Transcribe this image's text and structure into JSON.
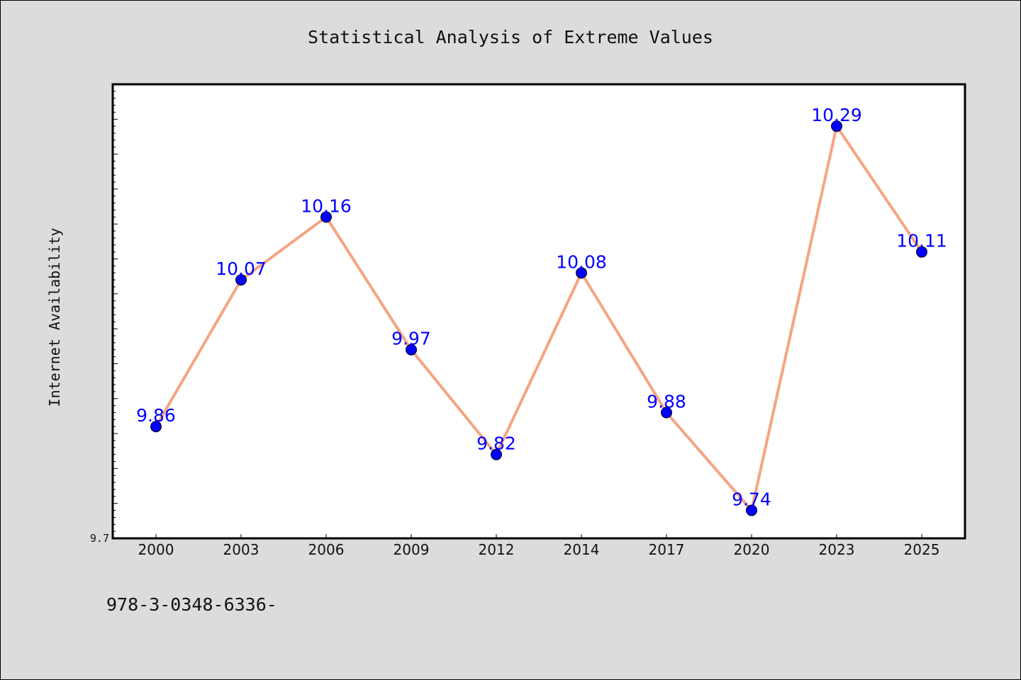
{
  "chart_data": {
    "type": "line",
    "title": "Statistical Analysis of Extreme Values",
    "xlabel": "",
    "ylabel": "Internet Availability",
    "categories": [
      "2000",
      "2003",
      "2006",
      "2009",
      "2012",
      "2014",
      "2017",
      "2020",
      "2023",
      "2025"
    ],
    "series": [
      {
        "values": [
          9.86,
          10.07,
          10.16,
          9.97,
          9.82,
          10.08,
          9.88,
          9.74,
          10.29,
          10.11
        ],
        "line_color": "#f4a582",
        "marker_color": "#0000ff"
      }
    ],
    "data_labels": [
      "9.86",
      "10.07",
      "10.16",
      "9.97",
      "9.82",
      "10.08",
      "9.88",
      "9.74",
      "10.29",
      "10.11"
    ],
    "ytick_labels": [
      "9.7"
    ],
    "ylim": [
      9.7,
      10.35
    ],
    "grid": false,
    "legend": "none"
  },
  "footnote": "978-3-0348-6336-",
  "colors": {
    "background": "#dcdcdc",
    "plot_background": "#ffffff",
    "line": "#f4a582",
    "marker": "#0000ff",
    "data_label": "#0000ff"
  }
}
